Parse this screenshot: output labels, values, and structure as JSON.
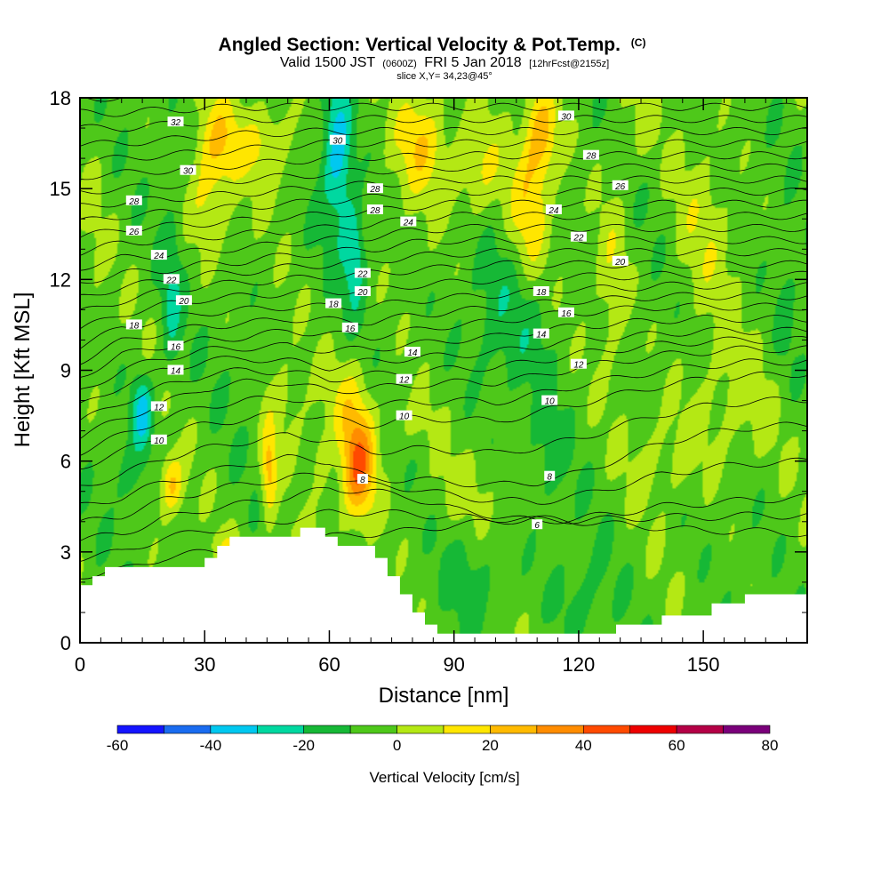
{
  "chart_data": {
    "type": "heatmap",
    "title": "Angled Section: Vertical Velocity & Pot.Temp.",
    "title_unit": "(C)",
    "subtitle_parts": {
      "a": "Valid 1500 JST",
      "b": "(0600Z)",
      "c": "FRI 5 Jan 2018",
      "d": "[12hrFcst@2155z]"
    },
    "slice_label": "slice X,Y= 34,23@45°",
    "xlabel": "Distance [nm]",
    "ylabel": "Height [Kft MSL]",
    "xlim": [
      0,
      175
    ],
    "ylim": [
      0,
      18
    ],
    "xticks": [
      0,
      30,
      60,
      90,
      120,
      150
    ],
    "yticks": [
      0,
      3,
      6,
      9,
      12,
      15,
      18
    ],
    "colorbar": {
      "label": "Vertical Velocity [cm/s]",
      "levels": [
        -60,
        -50,
        -40,
        -30,
        -20,
        -10,
        0,
        10,
        20,
        30,
        40,
        50,
        60,
        70,
        80
      ],
      "tick_labels": [
        "-60",
        "-40",
        "-20",
        "0",
        "20",
        "40",
        "60",
        "80"
      ],
      "colors": [
        "#1414ff",
        "#1a6cf0",
        "#00c8f0",
        "#00d8a0",
        "#16b836",
        "#4ec81a",
        "#b4e814",
        "#ffe600",
        "#ffba00",
        "#ff8c00",
        "#ff4a00",
        "#ee0000",
        "#b40046",
        "#7a007a"
      ]
    },
    "velocity_field": {
      "base_cm_s": -5,
      "cells": [
        {
          "x": 22,
          "y": 5.2,
          "sx": 2.8,
          "sy": 1.0,
          "w": 26
        },
        {
          "x": 45.5,
          "y": 5.6,
          "sx": 2.0,
          "sy": 1.6,
          "w": 30
        },
        {
          "x": 58,
          "y": 6.0,
          "sx": 2.0,
          "sy": 1.0,
          "w": 10
        },
        {
          "x": 67,
          "y": 5.8,
          "sx": 4.0,
          "sy": 1.7,
          "w": 44
        },
        {
          "x": 65,
          "y": 8.0,
          "sx": 6.0,
          "sy": 1.6,
          "w": 14
        },
        {
          "x": 50,
          "y": 8.0,
          "sx": 5.0,
          "sy": 1.5,
          "w": 8
        },
        {
          "x": 33,
          "y": 16.6,
          "sx": 5.0,
          "sy": 1.4,
          "w": 22
        },
        {
          "x": 31,
          "y": 14.5,
          "sx": 5.0,
          "sy": 1.6,
          "w": 16
        },
        {
          "x": 45,
          "y": 16.5,
          "sx": 7.0,
          "sy": 1.5,
          "w": 17
        },
        {
          "x": 82,
          "y": 16.6,
          "sx": 6.0,
          "sy": 1.8,
          "w": 24
        },
        {
          "x": 95,
          "y": 15.6,
          "sx": 7.0,
          "sy": 1.8,
          "w": 17
        },
        {
          "x": 111,
          "y": 16.8,
          "sx": 4.0,
          "sy": 1.6,
          "w": 28
        },
        {
          "x": 108,
          "y": 14.2,
          "sx": 4.5,
          "sy": 2.2,
          "w": 20
        },
        {
          "x": 128,
          "y": 12.2,
          "sx": 4.0,
          "sy": 3.0,
          "w": 12
        },
        {
          "x": 150,
          "y": 13.5,
          "sx": 7.0,
          "sy": 3.0,
          "w": 10
        },
        {
          "x": 62,
          "y": 16.2,
          "sx": 3.5,
          "sy": 2.5,
          "w": -32
        },
        {
          "x": 66,
          "y": 12.8,
          "sx": 2.5,
          "sy": 1.6,
          "w": -26
        },
        {
          "x": 15,
          "y": 7.6,
          "sx": 2.5,
          "sy": 1.2,
          "w": -30
        },
        {
          "x": 22,
          "y": 11.3,
          "sx": 2.5,
          "sy": 2.5,
          "w": -15
        },
        {
          "x": 12,
          "y": 5.5,
          "sx": 3.5,
          "sy": 1.0,
          "w": -10
        },
        {
          "x": 96,
          "y": 2.1,
          "sx": 9.0,
          "sy": 1.5,
          "w": -8
        },
        {
          "x": 120,
          "y": 1.5,
          "sx": 7.0,
          "sy": 1.5,
          "w": -8
        },
        {
          "x": 112,
          "y": 6.0,
          "sx": 5.0,
          "sy": 1.6,
          "w": -8
        },
        {
          "x": 102,
          "y": 10.5,
          "sx": 11.0,
          "sy": 2.5,
          "w": -10
        },
        {
          "x": 155,
          "y": 7.8,
          "sx": 11.0,
          "sy": 2.2,
          "w": 10
        },
        {
          "x": 140,
          "y": 6.0,
          "sx": 8.0,
          "sy": 1.4,
          "w": 8
        },
        {
          "x": 90,
          "y": 5.0,
          "sx": 10.0,
          "sy": 1.3,
          "w": 7
        },
        {
          "x": 52,
          "y": 3.5,
          "sx": 5.0,
          "sy": 0.6,
          "w": 8
        },
        {
          "x": 80,
          "y": 7.3,
          "sx": 6.0,
          "sy": 1.0,
          "w": 8
        },
        {
          "x": 38,
          "y": 9.5,
          "sx": 4.0,
          "sy": 1.5,
          "w": -2
        },
        {
          "x": 133,
          "y": 17.0,
          "sx": 6.0,
          "sy": 1.5,
          "w": 6
        },
        {
          "x": 170,
          "y": 11.0,
          "sx": 3.0,
          "sy": 3.0,
          "w": -6
        },
        {
          "x": 3,
          "y": 12.5,
          "sx": 3.0,
          "sy": 4.0,
          "w": 4
        },
        {
          "x": 35,
          "y": 3.2,
          "sx": 4.0,
          "sy": 0.5,
          "w": 10
        }
      ]
    },
    "terrain_kft": [
      {
        "x": 0,
        "y": 1.9
      },
      {
        "x": 3,
        "y": 2.2
      },
      {
        "x": 6,
        "y": 2.5
      },
      {
        "x": 30,
        "y": 2.8
      },
      {
        "x": 33,
        "y": 3.2
      },
      {
        "x": 36,
        "y": 3.5
      },
      {
        "x": 53,
        "y": 3.8
      },
      {
        "x": 59,
        "y": 3.5
      },
      {
        "x": 62,
        "y": 3.2
      },
      {
        "x": 71,
        "y": 2.8
      },
      {
        "x": 74,
        "y": 2.2
      },
      {
        "x": 77,
        "y": 1.6
      },
      {
        "x": 80,
        "y": 1.0
      },
      {
        "x": 83,
        "y": 0.6
      },
      {
        "x": 86,
        "y": 0.3
      },
      {
        "x": 129,
        "y": 0.6
      },
      {
        "x": 140,
        "y": 0.9
      },
      {
        "x": 152,
        "y": 1.3
      },
      {
        "x": 160,
        "y": 1.6
      },
      {
        "x": 175,
        "y": 1.6
      }
    ],
    "theta_contours": {
      "unit": "C",
      "levels": [
        2,
        4,
        6,
        8,
        10,
        12,
        14,
        16,
        18,
        20,
        22,
        24,
        26,
        28,
        30,
        32,
        34
      ],
      "reference_x": [
        0,
        10,
        20,
        30,
        40,
        50,
        60,
        70,
        80,
        90,
        100,
        110,
        120,
        130,
        140,
        150,
        160,
        175
      ],
      "reference_heights_kft": {
        "4": [
          2.2,
          2.4,
          2.8,
          3.0,
          3.1,
          3.3,
          3.5,
          3.6,
          3.7,
          3.9,
          4.0,
          4.1,
          4.0,
          3.9,
          3.8,
          3.7,
          3.7,
          3.6
        ],
        "6": [
          3.4,
          3.6,
          4.1,
          4.4,
          4.6,
          4.8,
          5.1,
          5.0,
          4.8,
          4.4,
          4.2,
          4.0,
          4.1,
          4.3,
          4.5,
          4.6,
          4.7,
          4.8
        ],
        "8": [
          4.5,
          4.8,
          5.3,
          5.6,
          5.9,
          6.1,
          6.0,
          5.4,
          5.4,
          5.3,
          5.2,
          5.3,
          5.6,
          6.1,
          6.6,
          6.9,
          7.1,
          7.2
        ],
        "10": [
          5.8,
          6.3,
          6.9,
          7.2,
          7.4,
          7.6,
          7.4,
          7.2,
          7.4,
          7.4,
          7.3,
          7.6,
          7.9,
          8.2,
          8.5,
          8.7,
          8.8,
          8.9
        ],
        "12": [
          6.8,
          7.4,
          7.9,
          8.4,
          8.6,
          8.6,
          8.3,
          8.4,
          8.5,
          8.6,
          8.6,
          8.8,
          9.1,
          9.3,
          9.5,
          9.6,
          9.7,
          9.7
        ],
        "14": [
          7.8,
          8.5,
          9.0,
          9.3,
          9.4,
          9.3,
          9.1,
          9.3,
          9.4,
          9.5,
          9.6,
          9.8,
          10.0,
          10.1,
          10.2,
          10.3,
          10.3,
          10.3
        ],
        "16": [
          8.8,
          9.5,
          9.8,
          10.0,
          10.1,
          10.3,
          10.2,
          10.1,
          10.3,
          10.5,
          10.6,
          10.8,
          10.9,
          11.0,
          11.1,
          11.1,
          11.1,
          11.1
        ],
        "18": [
          9.8,
          10.4,
          10.7,
          10.9,
          11.0,
          11.1,
          11.1,
          11.1,
          11.3,
          11.4,
          11.5,
          11.6,
          11.7,
          11.7,
          11.8,
          11.8,
          11.8,
          11.8
        ],
        "20": [
          10.9,
          11.3,
          11.6,
          11.8,
          11.9,
          12.0,
          12.1,
          12.2,
          12.3,
          12.4,
          12.5,
          12.5,
          12.5,
          12.5,
          12.5,
          12.5,
          12.5,
          12.5
        ],
        "22": [
          11.9,
          12.2,
          12.3,
          12.5,
          12.6,
          12.8,
          12.9,
          13.0,
          13.2,
          13.3,
          13.3,
          13.3,
          13.3,
          13.3,
          13.3,
          13.3,
          13.3,
          13.3
        ],
        "24": [
          12.9,
          13.2,
          13.3,
          13.4,
          13.5,
          13.6,
          13.7,
          13.8,
          14.0,
          14.1,
          14.1,
          14.1,
          14.1,
          14.1,
          14.1,
          14.1,
          14.1,
          14.1
        ],
        "26": [
          13.9,
          14.1,
          14.2,
          14.3,
          14.4,
          14.5,
          14.6,
          14.7,
          14.8,
          14.9,
          14.9,
          14.9,
          14.9,
          14.9,
          14.9,
          14.9,
          14.9,
          14.9
        ],
        "28": [
          14.9,
          15.0,
          15.1,
          15.2,
          15.3,
          15.4,
          15.5,
          15.6,
          15.6,
          15.7,
          15.7,
          15.7,
          15.7,
          15.7,
          15.7,
          15.7,
          15.7,
          15.7
        ],
        "30": [
          15.9,
          16.0,
          16.1,
          16.2,
          16.3,
          16.4,
          16.5,
          16.5,
          16.5,
          16.5,
          16.5,
          16.5,
          16.5,
          16.5,
          16.5,
          16.5,
          16.5,
          16.5
        ],
        "32": [
          17.0,
          17.0,
          17.1,
          17.2,
          17.3,
          17.3,
          17.3,
          17.3,
          17.3,
          17.3,
          17.3,
          17.3,
          17.3,
          17.3,
          17.3,
          17.3,
          17.3,
          17.3
        ],
        "34": [
          18.0,
          18.0,
          18.1,
          18.1,
          18.1,
          18.1,
          18.1,
          18.1,
          18.1,
          18.1,
          18.1,
          18.1,
          18.1,
          18.1,
          18.1,
          18.1,
          18.1,
          18.1
        ]
      },
      "labels": [
        {
          "text": "32",
          "x": 23,
          "y": 17.2
        },
        {
          "text": "30",
          "x": 26,
          "y": 15.6
        },
        {
          "text": "28",
          "x": 13,
          "y": 14.6
        },
        {
          "text": "26",
          "x": 13,
          "y": 13.6
        },
        {
          "text": "24",
          "x": 19,
          "y": 12.8
        },
        {
          "text": "22",
          "x": 22,
          "y": 12.0
        },
        {
          "text": "20",
          "x": 25,
          "y": 11.3
        },
        {
          "text": "18",
          "x": 13,
          "y": 10.5
        },
        {
          "text": "16",
          "x": 23,
          "y": 9.8
        },
        {
          "text": "14",
          "x": 23,
          "y": 9.0
        },
        {
          "text": "12",
          "x": 19,
          "y": 7.8
        },
        {
          "text": "10",
          "x": 19,
          "y": 6.7
        },
        {
          "text": "30",
          "x": 62,
          "y": 16.6
        },
        {
          "text": "28",
          "x": 71,
          "y": 15.0
        },
        {
          "text": "28",
          "x": 71,
          "y": 14.3
        },
        {
          "text": "24",
          "x": 79,
          "y": 13.9
        },
        {
          "text": "22",
          "x": 68,
          "y": 12.2
        },
        {
          "text": "20",
          "x": 68,
          "y": 11.6
        },
        {
          "text": "18",
          "x": 61,
          "y": 11.2
        },
        {
          "text": "16",
          "x": 65,
          "y": 10.4
        },
        {
          "text": "14",
          "x": 80,
          "y": 9.6
        },
        {
          "text": "12",
          "x": 78,
          "y": 8.7
        },
        {
          "text": "10",
          "x": 78,
          "y": 7.5
        },
        {
          "text": "8",
          "x": 68,
          "y": 5.4
        },
        {
          "text": "30",
          "x": 117,
          "y": 17.4
        },
        {
          "text": "28",
          "x": 123,
          "y": 16.1
        },
        {
          "text": "26",
          "x": 130,
          "y": 15.1
        },
        {
          "text": "24",
          "x": 114,
          "y": 14.3
        },
        {
          "text": "22",
          "x": 120,
          "y": 13.4
        },
        {
          "text": "20",
          "x": 130,
          "y": 12.6
        },
        {
          "text": "18",
          "x": 111,
          "y": 11.6
        },
        {
          "text": "16",
          "x": 117,
          "y": 10.9
        },
        {
          "text": "14",
          "x": 111,
          "y": 10.2
        },
        {
          "text": "12",
          "x": 120,
          "y": 9.2
        },
        {
          "text": "10",
          "x": 113,
          "y": 8.0
        },
        {
          "text": "8",
          "x": 113,
          "y": 5.5
        },
        {
          "text": "6",
          "x": 110,
          "y": 3.9
        }
      ]
    }
  }
}
